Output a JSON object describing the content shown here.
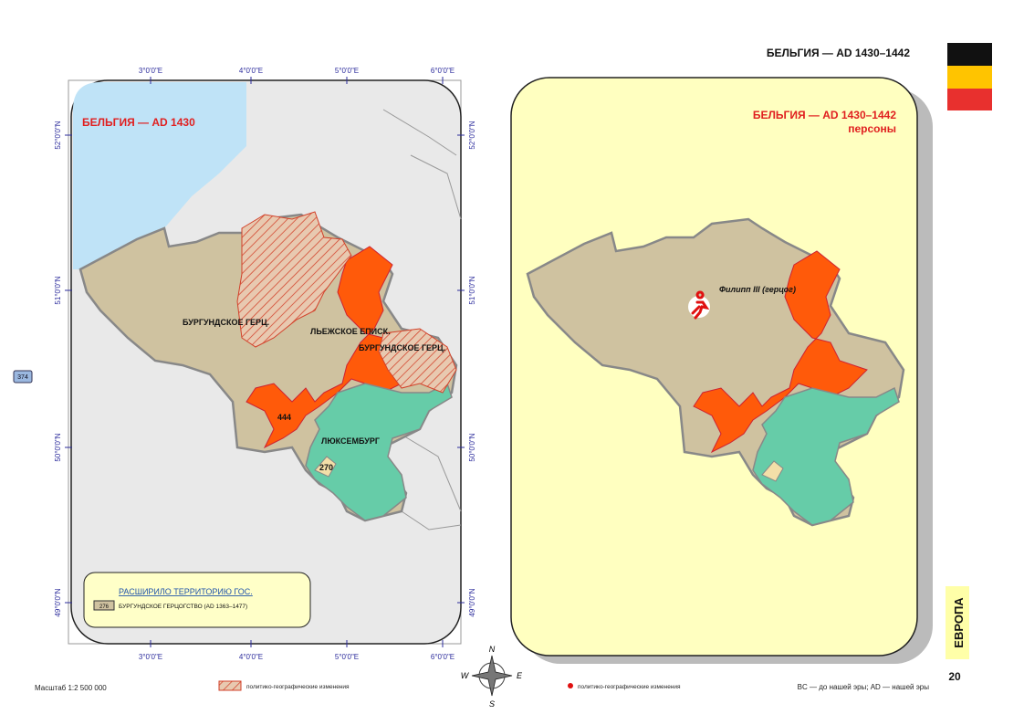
{
  "header": {
    "title": "БЕЛЬГИЯ — AD 1430–1442"
  },
  "sidebar": {
    "section": "ЕВРОПА",
    "page": "20"
  },
  "left_map": {
    "title": "БЕЛЬГИЯ — AD 1430",
    "labels": [
      "БУРГУНДСКОЕ ГЕРЦ.",
      "ЛЬЕЖСКОЕ ЕПИСК.",
      "БУРГУНДСКОЕ ГЕРЦ.",
      "ЛЮКСЕМБУРГ",
      "444",
      "270"
    ],
    "badge": "374",
    "lon_ticks": [
      "3°0'0\"E",
      "4°0'0\"E",
      "5°0'0\"E",
      "6°0'0\"E"
    ],
    "lat_ticks": [
      "52°0'0\"N",
      "51°0'0\"N",
      "50°0'0\"N",
      "49°0'0\"N"
    ]
  },
  "legend": {
    "heading": "РАСШИРИЛО ТЕРРИТОРИЮ ГОС.",
    "code": "276",
    "text": "БУРГУНДСКОЕ ГЕРЦОГСТВО (AD 1363–1477)"
  },
  "right_map": {
    "title": "БЕЛЬГИЯ — AD 1430–1442",
    "subtitle": "персоны",
    "person": "Филипп III (герцог)"
  },
  "compass": {
    "n": "N",
    "w": "W",
    "e": "E",
    "s": "S"
  },
  "footer": {
    "scale": "Масштаб 1:2 500 000",
    "hatch_note": "политико-географические изменения",
    "dot_note": "политико-географические изменения",
    "era_note": "BC — до нашей эры; AD — нашей эры"
  }
}
